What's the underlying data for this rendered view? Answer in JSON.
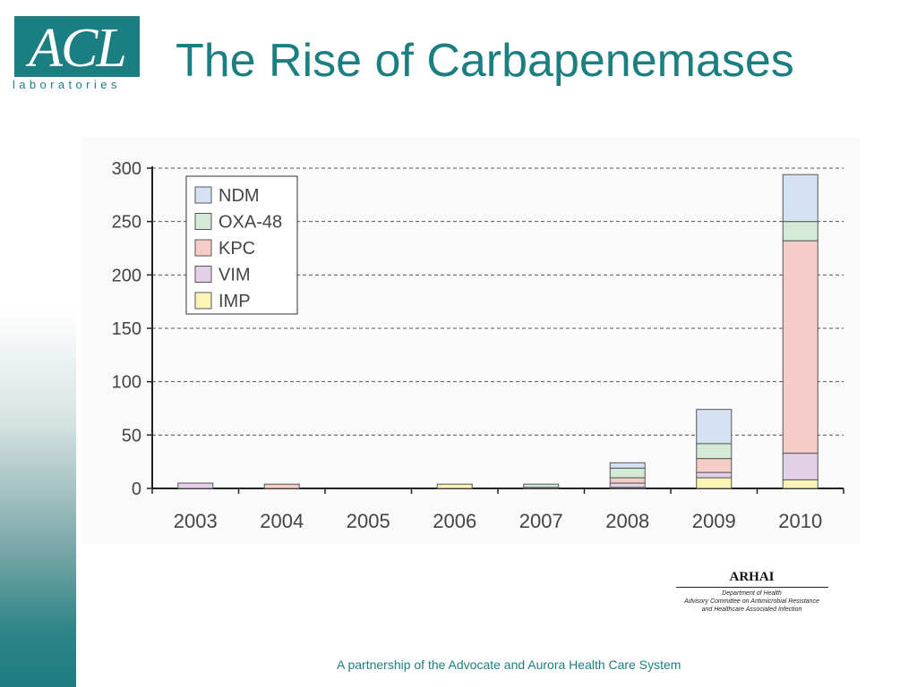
{
  "logo": {
    "mark": "ACL",
    "sub": "laboratories"
  },
  "title": "The Rise of Carbapenemases",
  "arhai": {
    "title": "ARHAI",
    "line1": "Department of Health",
    "line2": "Advisory Committee on Antimicrobial Resistance",
    "line3": "and Healthcare Associated Infection"
  },
  "footer": "A partnership of the Advocate and Aurora Health Care System",
  "colors": {
    "brand": "#1b7f82",
    "NDM": "#d5e2f4",
    "OXA-48": "#d3ebd6",
    "KPC": "#f3cdc6",
    "VIM": "#e1d0e6",
    "IMP": "#faf5b5"
  },
  "chart_data": {
    "type": "bar",
    "stacked": true,
    "categories": [
      "2003",
      "2004",
      "2005",
      "2006",
      "2007",
      "2008",
      "2009",
      "2010"
    ],
    "series": [
      {
        "name": "IMP",
        "values": [
          0,
          0,
          0,
          4,
          0,
          1,
          10,
          8
        ]
      },
      {
        "name": "VIM",
        "values": [
          5,
          0,
          0,
          0,
          0,
          4,
          5,
          25
        ]
      },
      {
        "name": "KPC",
        "values": [
          0,
          4,
          0,
          0,
          1,
          5,
          13,
          199
        ]
      },
      {
        "name": "OXA-48",
        "values": [
          0,
          0,
          0,
          0,
          3,
          9,
          14,
          18
        ]
      },
      {
        "name": "NDM",
        "values": [
          0,
          0,
          0,
          0,
          0,
          5,
          32,
          44
        ]
      }
    ],
    "legend_order": [
      "NDM",
      "OXA-48",
      "KPC",
      "VIM",
      "IMP"
    ],
    "y_ticks": [
      0,
      50,
      100,
      150,
      200,
      250,
      300
    ],
    "ylim": [
      0,
      300
    ],
    "grid": true,
    "grid_style": "dashed",
    "legend_position": "top-left"
  }
}
